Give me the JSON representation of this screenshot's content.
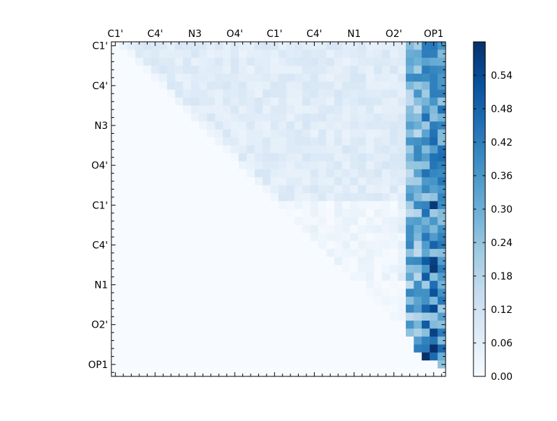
{
  "chart_data": {
    "type": "heatmap",
    "title": "",
    "xlabel": "",
    "ylabel": "",
    "n_cells": 42,
    "x_tick_labels": [
      "C1'",
      "C4'",
      "N3",
      "O4'",
      "C1'",
      "C4'",
      "N1",
      "O2'",
      "OP1"
    ],
    "y_tick_labels": [
      "C1'",
      "C4'",
      "N3",
      "O4'",
      "C1'",
      "C4'",
      "N1",
      "O2'",
      "OP1"
    ],
    "tick_label_index_step": 5,
    "colorscale": "Blues",
    "color_low": "#f7fbff",
    "color_high": "#08306b",
    "vmin": 0.0,
    "vmax": 0.6,
    "colorbar_ticks": [
      "0.00",
      "0.06",
      "0.12",
      "0.18",
      "0.24",
      "0.30",
      "0.36",
      "0.42",
      "0.48",
      "0.54"
    ],
    "matrix_description_note": null,
    "strong_cells": [
      {
        "row": 20,
        "col": 40,
        "value": 0.58
      },
      {
        "row": 27,
        "col": 40,
        "value": 0.56
      },
      {
        "row": 28,
        "col": 40,
        "value": 0.58
      },
      {
        "row": 31,
        "col": 40,
        "value": 0.52
      },
      {
        "row": 33,
        "col": 40,
        "value": 0.54
      },
      {
        "row": 36,
        "col": 40,
        "value": 0.56
      },
      {
        "row": 38,
        "col": 40,
        "value": 0.6
      },
      {
        "row": 39,
        "col": 39,
        "value": 0.6
      },
      {
        "row": 38,
        "col": 38,
        "value": 0.42
      },
      {
        "row": 14,
        "col": 41,
        "value": 0.46
      },
      {
        "row": 17,
        "col": 41,
        "value": 0.44
      },
      {
        "row": 25,
        "col": 40,
        "value": 0.48
      },
      {
        "row": 27,
        "col": 39,
        "value": 0.5
      },
      {
        "row": 29,
        "col": 39,
        "value": 0.5
      },
      {
        "row": 33,
        "col": 39,
        "value": 0.48
      },
      {
        "row": 35,
        "col": 39,
        "value": 0.5
      },
      {
        "row": 31,
        "col": 37,
        "value": 0.4
      },
      {
        "row": 33,
        "col": 37,
        "value": 0.4
      },
      {
        "row": 25,
        "col": 37,
        "value": 0.4
      },
      {
        "row": 23,
        "col": 37,
        "value": 0.38
      },
      {
        "row": 19,
        "col": 37,
        "value": 0.36
      }
    ]
  }
}
